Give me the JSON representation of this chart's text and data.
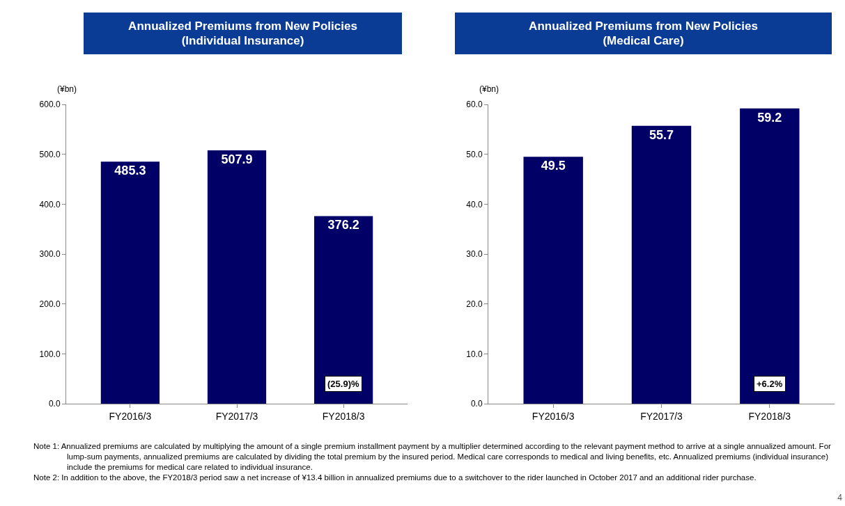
{
  "chart_data": [
    {
      "type": "bar",
      "title": "Annualized Premiums from New Policies\n(Individual Insurance)",
      "ylabel": "(¥bn)",
      "categories": [
        "FY2016/3",
        "FY2017/3",
        "FY2018/3"
      ],
      "values": [
        485.3,
        507.9,
        376.2
      ],
      "color": "#000066",
      "data_labels": true,
      "grid": false,
      "legend": false,
      "ylim": [
        0,
        600
      ],
      "yticks": [
        {
          "value": 0,
          "label": "0.0"
        },
        {
          "value": 100,
          "label": "100.0"
        },
        {
          "value": 200,
          "label": "200.0"
        },
        {
          "value": 300,
          "label": "300.0"
        },
        {
          "value": 400,
          "label": "400.0"
        },
        {
          "value": 500,
          "label": "500.0"
        },
        {
          "value": 600,
          "label": "600.0"
        }
      ],
      "annotations": [
        "(25.9)%",
        "Note 1: Annualized premiums are calculated by multiplying the amount of a single premium installment payment by a multiplier determined according to the relevant payment method to arrive at a single annualized amount. For lump-sum payments, annualized premiums are calculated by dividing the total premium by the insured period. Medical care corresponds to medical and living benefits, etc. Annualized premiums (individual insurance) include the premiums for medical care related to individual insurance.",
        "Note 2: In addition to the above, the FY2018/3 period saw a net increase of ¥13.4 billion in annualized premiums due to a switchover to the rider launched in October 2017 and an additional rider purchase.",
        "4"
      ]
    },
    {
      "type": "bar",
      "title": "Annualized Premiums from New Policies\n(Medical Care)",
      "ylabel": "(¥bn)",
      "categories": [
        "FY2016/3",
        "FY2017/3",
        "FY2018/3"
      ],
      "values": [
        49.5,
        55.7,
        59.2
      ],
      "color": "#000066",
      "data_labels": true,
      "grid": false,
      "legend": false,
      "ylim": [
        0,
        60
      ],
      "yticks": [
        {
          "value": 0,
          "label": "0.0"
        },
        {
          "value": 10,
          "label": "10.0"
        },
        {
          "value": 20,
          "label": "20.0"
        },
        {
          "value": 30,
          "label": "30.0"
        },
        {
          "value": 40,
          "label": "40.0"
        },
        {
          "value": 50,
          "label": "50.0"
        },
        {
          "value": 60,
          "label": "60.0"
        }
      ],
      "annotations": [
        "+6.2%"
      ]
    }
  ]
}
